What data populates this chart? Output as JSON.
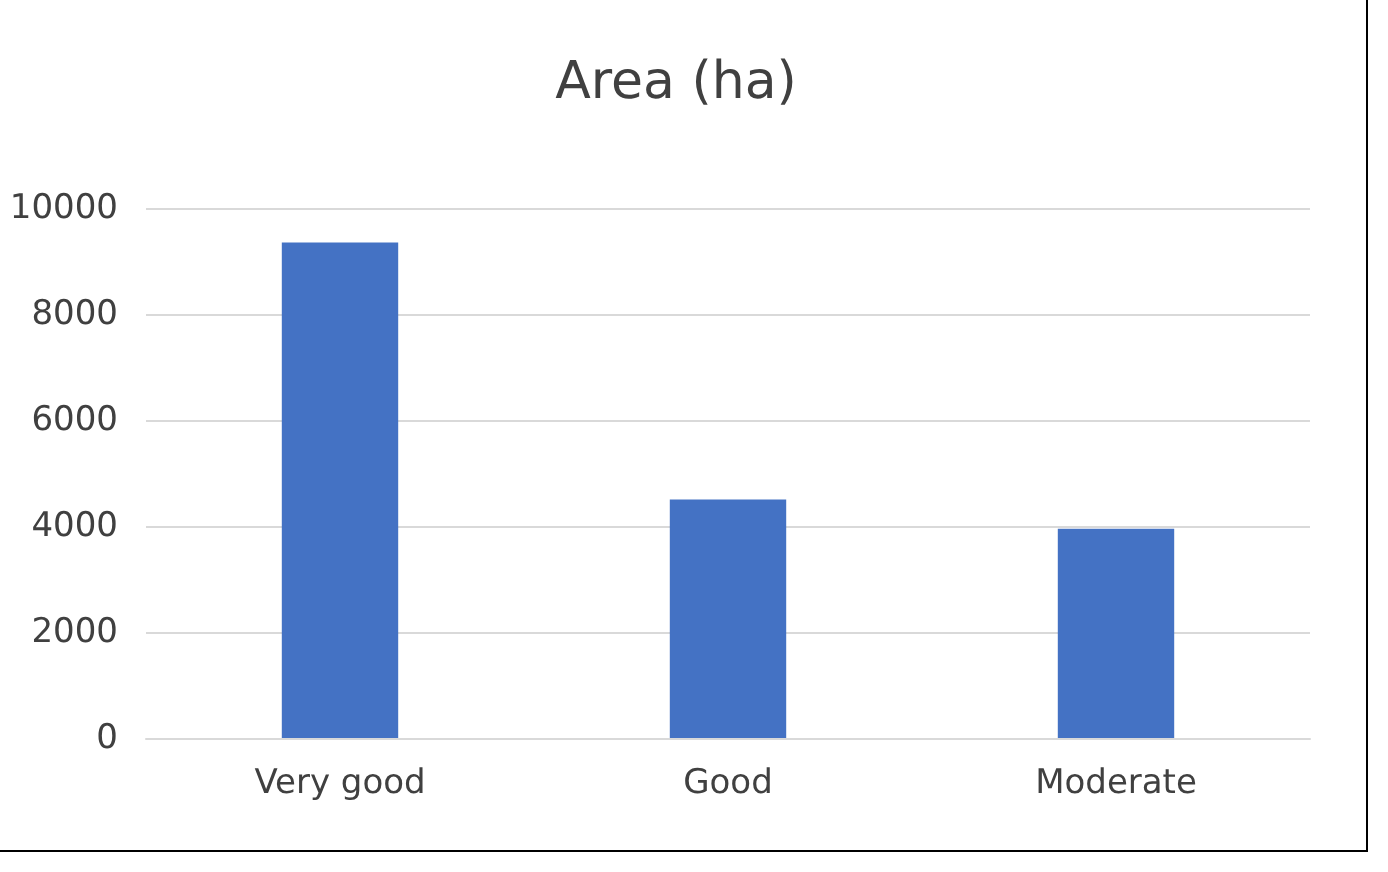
{
  "chart_data": {
    "type": "bar",
    "title": "Area (ha)",
    "categories": [
      "Very good",
      "Good",
      "Moderate"
    ],
    "values": [
      9350,
      4500,
      3950
    ],
    "color": "#4472c4",
    "ylim": [
      0,
      10000
    ],
    "yticks": [
      0,
      2000,
      4000,
      6000,
      8000,
      10000
    ],
    "grid": "y"
  }
}
